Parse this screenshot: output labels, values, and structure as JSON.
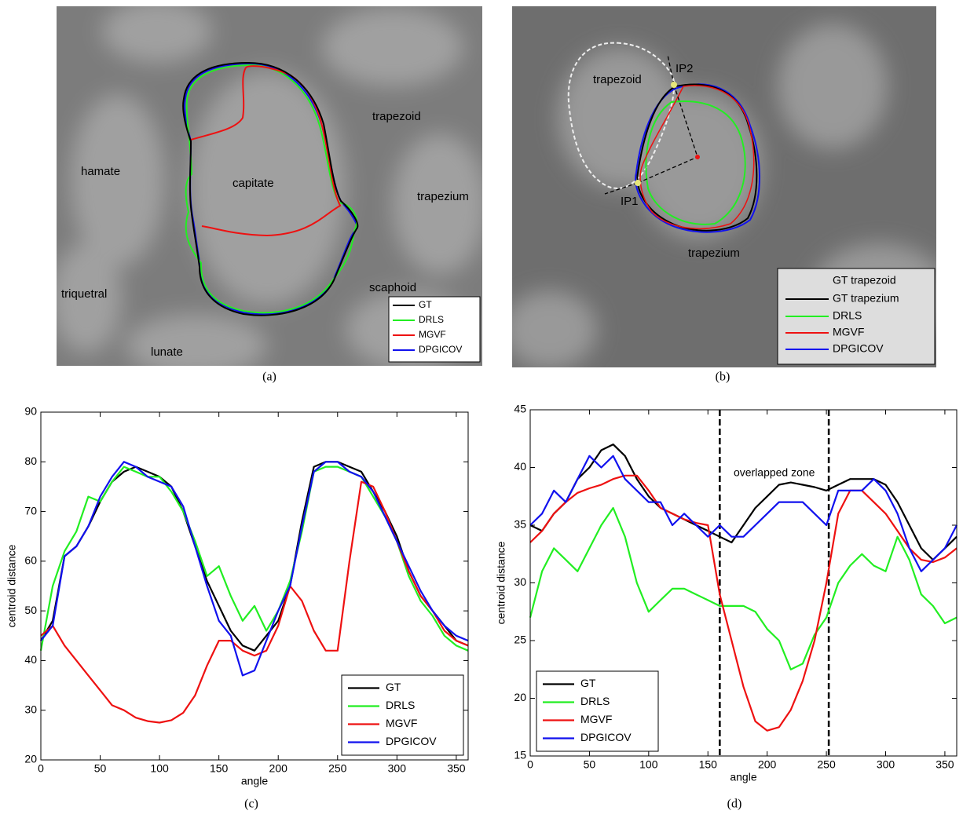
{
  "images": [
    {
      "caption": "(a)",
      "labels": [
        "hamate",
        "capitate",
        "trapezoid",
        "trapezium",
        "triquetral",
        "lunate",
        "scaphoid"
      ],
      "legend": [
        "GT",
        "DRLS",
        "MGVF",
        "DPGICOV"
      ]
    },
    {
      "caption": "(b)",
      "labels": [
        "trapezoid",
        "IP2",
        "IP1",
        "trapezium"
      ],
      "legend": [
        "GT trapezoid",
        "GT trapezium",
        "DRLS",
        "MGVF",
        "DPGICOV"
      ]
    }
  ],
  "chart_data": [
    {
      "type": "line",
      "caption": "(c)",
      "xlabel": "angle",
      "ylabel": "centroid distance",
      "x": [
        0,
        10,
        20,
        30,
        40,
        50,
        60,
        70,
        80,
        90,
        100,
        110,
        120,
        130,
        140,
        150,
        160,
        170,
        180,
        190,
        200,
        210,
        220,
        230,
        240,
        250,
        260,
        270,
        280,
        290,
        300,
        310,
        320,
        330,
        340,
        350,
        360
      ],
      "xlim": [
        0,
        360
      ],
      "ylim": [
        20,
        90
      ],
      "xticks": [
        0,
        50,
        100,
        150,
        200,
        250,
        300,
        350
      ],
      "yticks": [
        20,
        30,
        40,
        50,
        60,
        70,
        80,
        90
      ],
      "legend_position": "lower right",
      "series": [
        {
          "name": "GT",
          "color": "#000000",
          "values": [
            44,
            48,
            61,
            63,
            67,
            72,
            76,
            78,
            79,
            78,
            77,
            75,
            70,
            63,
            56,
            51,
            46,
            43,
            42,
            45,
            48,
            55,
            68,
            79,
            80,
            80,
            79,
            78,
            74,
            70,
            65,
            58,
            53,
            50,
            47,
            44,
            43
          ]
        },
        {
          "name": "DRLS",
          "color": "#22ee22",
          "values": [
            42,
            55,
            62,
            66,
            73,
            72,
            76,
            79,
            78,
            77,
            77,
            74,
            70,
            64,
            57,
            59,
            53,
            48,
            51,
            46,
            50,
            56,
            66,
            78,
            79,
            79,
            78,
            77,
            73,
            69,
            64,
            57,
            52,
            49,
            45,
            43,
            42
          ]
        },
        {
          "name": "MGVF",
          "color": "#ee1111",
          "values": [
            45,
            47,
            43,
            40,
            37,
            34,
            31,
            30,
            28.5,
            27.8,
            27.5,
            28,
            29.5,
            33,
            39,
            44,
            44,
            42,
            41,
            42,
            47,
            55,
            52,
            46,
            42,
            42,
            60,
            76,
            75,
            70,
            64,
            58,
            53,
            50,
            46,
            44,
            43
          ]
        },
        {
          "name": "DPGICOV",
          "color": "#1111ee",
          "values": [
            44,
            47,
            61,
            63,
            67,
            73,
            77,
            80,
            79,
            77,
            76,
            75,
            71,
            63,
            55,
            48,
            45,
            37,
            38,
            44,
            50,
            55,
            67,
            78,
            80,
            80,
            78,
            77,
            74,
            69,
            64,
            59,
            54,
            50,
            47,
            45,
            44
          ]
        }
      ]
    },
    {
      "type": "line",
      "caption": "(d)",
      "xlabel": "angle",
      "ylabel": "centroid distance",
      "annotation": "overlapped zone",
      "x": [
        0,
        10,
        20,
        30,
        40,
        50,
        60,
        70,
        80,
        90,
        100,
        110,
        120,
        130,
        140,
        150,
        160,
        170,
        180,
        190,
        200,
        210,
        220,
        230,
        240,
        250,
        260,
        270,
        280,
        290,
        300,
        310,
        320,
        330,
        340,
        350,
        360
      ],
      "xlim": [
        0,
        360
      ],
      "ylim": [
        15,
        45
      ],
      "xticks": [
        0,
        50,
        100,
        150,
        200,
        250,
        300,
        350
      ],
      "yticks": [
        15,
        20,
        25,
        30,
        35,
        40,
        45
      ],
      "vlines": [
        160,
        252
      ],
      "legend_position": "lower left",
      "series": [
        {
          "name": "GT",
          "color": "#000000",
          "values": [
            35,
            34.5,
            36,
            37,
            39,
            40,
            41.5,
            42,
            41,
            39,
            37.5,
            36.5,
            36,
            35.5,
            35,
            34.5,
            34,
            33.5,
            35,
            36.5,
            37.5,
            38.5,
            38.7,
            38.5,
            38.3,
            38,
            38.5,
            39,
            39,
            39,
            38.5,
            37,
            35,
            33,
            32,
            33,
            34
          ]
        },
        {
          "name": "DRLS",
          "color": "#22ee22",
          "values": [
            27,
            31,
            33,
            32,
            31,
            33,
            35,
            36.5,
            34,
            30,
            27.5,
            28.5,
            29.5,
            29.5,
            29,
            28.5,
            28,
            28,
            28,
            27.5,
            26,
            25,
            22.5,
            23,
            25.5,
            27,
            30,
            31.5,
            32.5,
            31.5,
            31,
            34,
            32,
            29,
            28,
            26.5,
            27
          ]
        },
        {
          "name": "MGVF",
          "color": "#ee1111",
          "values": [
            33.5,
            34.5,
            36,
            37,
            37.8,
            38.2,
            38.5,
            39,
            39.3,
            39.3,
            38,
            36.5,
            36,
            35.5,
            35.2,
            35,
            29,
            25,
            21,
            18,
            17.2,
            17.5,
            19,
            21.5,
            25,
            30,
            36,
            38,
            38,
            37,
            36,
            34.5,
            33,
            32,
            31.8,
            32.2,
            33
          ]
        },
        {
          "name": "DPGICOV",
          "color": "#1111ee",
          "values": [
            35,
            36,
            38,
            37,
            39,
            41,
            40,
            41,
            39,
            38,
            37,
            37,
            35,
            36,
            35,
            34,
            35,
            34,
            34,
            35,
            36,
            37,
            37,
            37,
            36,
            35,
            38,
            38,
            38,
            39,
            38,
            36,
            33,
            31,
            32,
            33,
            35
          ]
        }
      ]
    }
  ]
}
